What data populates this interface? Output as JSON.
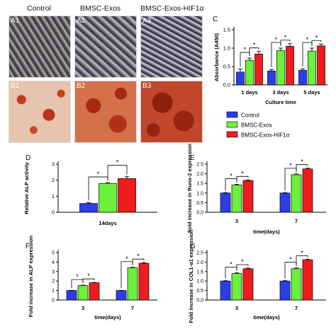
{
  "columns": [
    "Control",
    "BMSC-Exos",
    "BMSC-Exos-HIF1α"
  ],
  "image_panels": [
    {
      "label": "A1",
      "style": "stain-dark"
    },
    {
      "label": "A2",
      "style": "stain-dark2"
    },
    {
      "label": "A3",
      "style": "stain-dark3"
    },
    {
      "label": "B1",
      "style": "stain-red-light"
    },
    {
      "label": "B2",
      "style": "stain-red"
    },
    {
      "label": "B3",
      "style": "stain-red-dark"
    }
  ],
  "legend": {
    "entries": [
      "Control",
      "BMSC-Exos",
      "BMSC-Exos-HIF1α"
    ],
    "colors": [
      "#2b3ee6",
      "#6cf03a",
      "#ee1c1c"
    ]
  },
  "panel_letters": [
    "C",
    "D",
    "E",
    "F",
    "G"
  ],
  "significance_mark": "*",
  "chart_data": [
    {
      "panel": "C",
      "type": "bar",
      "categories": [
        "1 days",
        "3 days",
        "5 days"
      ],
      "series": [
        {
          "name": "Control",
          "values": [
            0.35,
            0.38,
            0.4
          ],
          "errors": [
            0.08,
            0.04,
            0.04
          ]
        },
        {
          "name": "BMSC-Exos",
          "values": [
            0.67,
            0.93,
            0.92
          ],
          "errors": [
            0.06,
            0.07,
            0.08
          ]
        },
        {
          "name": "BMSC-Exos-HIF1α",
          "values": [
            0.84,
            1.05,
            1.06
          ],
          "errors": [
            0.07,
            0.07,
            0.05
          ]
        }
      ],
      "xlabel": "Culture time",
      "ylabel": "Absorbance (A450)",
      "ylim": [
        0,
        1.5
      ],
      "yticks": [
        "0.0",
        "0.5",
        "1.0",
        "1.5"
      ]
    },
    {
      "panel": "D",
      "type": "bar",
      "categories": [
        "14days"
      ],
      "series": [
        {
          "name": "Control",
          "values": [
            0.55
          ],
          "errors": [
            0.05
          ]
        },
        {
          "name": "BMSC-Exos",
          "values": [
            1.8
          ],
          "errors": [
            0.05
          ]
        },
        {
          "name": "BMSC-Exos-HIF1α",
          "values": [
            2.1
          ],
          "errors": [
            0.12
          ]
        }
      ],
      "xlabel": "14days",
      "ylabel": "Relative ALP activity",
      "ylim": [
        0,
        3
      ],
      "yticks": [
        "0",
        "1",
        "2",
        "3"
      ]
    },
    {
      "panel": "E",
      "type": "bar",
      "categories": [
        "3",
        "7"
      ],
      "series": [
        {
          "name": "Control",
          "values": [
            1.0,
            1.0
          ],
          "errors": [
            0.02,
            0.02
          ]
        },
        {
          "name": "BMSC-Exos",
          "values": [
            1.42,
            1.95
          ],
          "errors": [
            0.03,
            0.04
          ]
        },
        {
          "name": "BMSC-Exos-HIF1α",
          "values": [
            1.65,
            2.25
          ],
          "errors": [
            0.03,
            0.04
          ]
        }
      ],
      "xlabel": "time(days)",
      "ylabel": "Fold increase in Runx-2 expression",
      "ylim": [
        0,
        2.5
      ],
      "yticks": [
        "0.0",
        "0.5",
        "1.0",
        "1.5",
        "2.0",
        "2.5"
      ]
    },
    {
      "panel": "F",
      "type": "bar",
      "categories": [
        "3",
        "7"
      ],
      "series": [
        {
          "name": "Control",
          "values": [
            1.0,
            1.0
          ],
          "errors": [
            0.02,
            0.02
          ]
        },
        {
          "name": "BMSC-Exos",
          "values": [
            1.52,
            3.4
          ],
          "errors": [
            0.04,
            0.05
          ]
        },
        {
          "name": "BMSC-Exos-HIF1α",
          "values": [
            1.82,
            3.88
          ],
          "errors": [
            0.03,
            0.06
          ]
        }
      ],
      "xlabel": "time(days)",
      "ylabel": "Fold increase in ALP expression",
      "ylim": [
        0,
        5
      ],
      "yticks": [
        "0",
        "1",
        "2",
        "3",
        "4",
        "5"
      ]
    },
    {
      "panel": "G",
      "type": "bar",
      "categories": [
        "3",
        "7"
      ],
      "series": [
        {
          "name": "Control",
          "values": [
            1.0,
            1.0
          ],
          "errors": [
            0.02,
            0.02
          ]
        },
        {
          "name": "BMSC-Exos",
          "values": [
            1.4,
            1.65
          ],
          "errors": [
            0.03,
            0.04
          ]
        },
        {
          "name": "BMSC-Exos-HIF1α",
          "values": [
            1.65,
            2.12
          ],
          "errors": [
            0.03,
            0.03
          ]
        }
      ],
      "xlabel": "time(days)",
      "ylabel": "Fold increase in COL1-α1 expression",
      "ylim": [
        0,
        2.5
      ],
      "yticks": [
        "0.0",
        "0.5",
        "1.0",
        "1.5",
        "2.0",
        "2.5"
      ]
    }
  ]
}
